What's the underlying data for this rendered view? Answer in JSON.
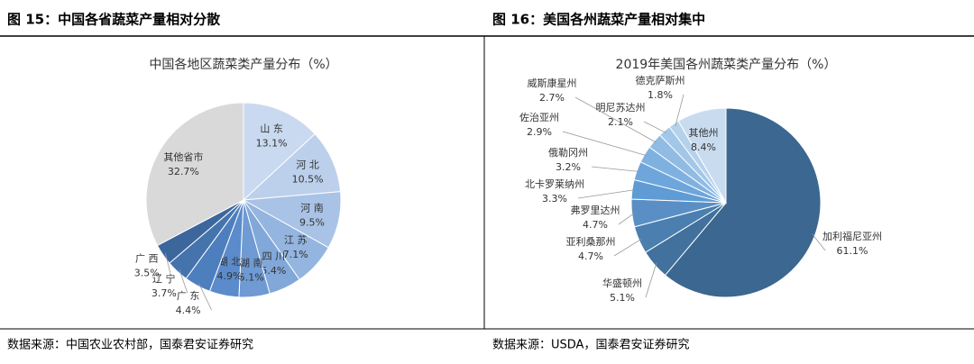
{
  "panels": [
    {
      "heading": "图 15：中国各省蔬菜产量相对分散",
      "source": "数据来源：中国农业农村部，国泰君安证券研究"
    },
    {
      "heading": "图 16：美国各州蔬菜产量相对集中",
      "source": "数据来源：USDA，国泰君安证券研究"
    }
  ],
  "chart_data": [
    {
      "type": "pie",
      "title": "中国各地区蔬菜类产量分布（%）",
      "categories": [
        "山 东",
        "河 北",
        "河 南",
        "江 苏",
        "四 川",
        "湖 南",
        "湖 北",
        "广 东",
        "辽 宁",
        "广 西",
        "其他省市"
      ],
      "values": [
        13.1,
        10.5,
        9.5,
        7.1,
        5.4,
        5.1,
        4.9,
        4.4,
        3.7,
        3.5,
        32.7
      ],
      "value_labels": [
        "13.1%",
        "10.5%",
        "9.5%",
        "7.1%",
        "5.4%",
        "5.1%",
        "4.9%",
        "4.4%",
        "3.7%",
        "3.5%",
        "32.7%"
      ],
      "colors": [
        "#c9d9ef",
        "#bcd0ec",
        "#a9c3e6",
        "#94b5df",
        "#82a8da",
        "#6f9ad3",
        "#5b8bcb",
        "#4d7fbe",
        "#4574ad",
        "#3c679d",
        "#d9d9d9"
      ]
    },
    {
      "type": "pie",
      "title": "2019年美国各州蔬菜类产量分布（%）",
      "categories": [
        "加利福尼亚州",
        "华盛顿州",
        "亚利桑那州",
        "弗罗里达州",
        "北卡罗莱纳州",
        "俄勒冈州",
        "佐治亚州",
        "威斯康星州",
        "明尼苏达州",
        "德克萨斯州",
        "其他州"
      ],
      "values": [
        61.1,
        5.1,
        4.7,
        4.7,
        3.3,
        3.2,
        2.9,
        2.7,
        2.1,
        1.8,
        8.4
      ],
      "value_labels": [
        "61.1%",
        "5.1%",
        "4.7%",
        "4.7%",
        "3.3%",
        "3.2%",
        "2.9%",
        "2.7%",
        "2.1%",
        "1.8%",
        "8.4%"
      ],
      "colors": [
        "#3b6790",
        "#41719c",
        "#4a7fb0",
        "#5a8fc5",
        "#5f9bd5",
        "#6ea6db",
        "#7fb1e0",
        "#90bce4",
        "#a3c7e8",
        "#b5d2ec",
        "#c9dcef"
      ]
    }
  ]
}
